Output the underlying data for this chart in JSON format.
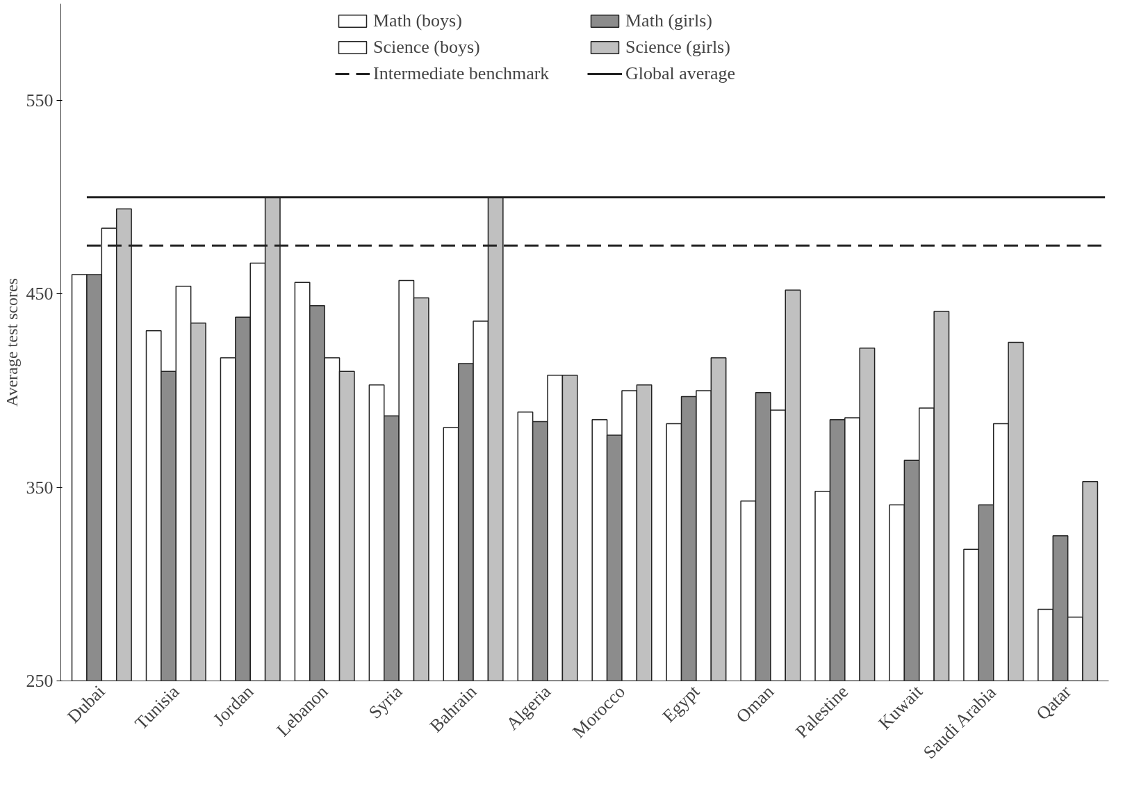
{
  "chart_data": {
    "type": "bar",
    "ylabel": "Average test scores",
    "categories": [
      "Dubai",
      "Tunisia",
      "Jordan",
      "Lebanon",
      "Syria",
      "Bahrain",
      "Algeria",
      "Morocco",
      "Egypt",
      "Oman",
      "Palestine",
      "Kuwait",
      "Saudi Arabia",
      "Qatar"
    ],
    "series": [
      {
        "name": "Math (boys)",
        "color": "#ffffff",
        "values": [
          460,
          431,
          417,
          456,
          403,
          381,
          389,
          385,
          383,
          343,
          348,
          341,
          318,
          287
        ]
      },
      {
        "name": "Math (girls)",
        "color": "#8c8c8c",
        "values": [
          460,
          410,
          438,
          444,
          387,
          414,
          384,
          377,
          397,
          399,
          385,
          364,
          341,
          325
        ]
      },
      {
        "name": "Science (boys)",
        "color": "#ffffff",
        "values": [
          484,
          454,
          466,
          417,
          457,
          436,
          408,
          400,
          400,
          390,
          386,
          391,
          383,
          283
        ]
      },
      {
        "name": "Science (girls)",
        "color": "#c0c0c0",
        "values": [
          494,
          435,
          500,
          410,
          448,
          500,
          408,
          403,
          417,
          452,
          422,
          441,
          425,
          353
        ]
      }
    ],
    "ylim": [
      250,
      600
    ],
    "yticks": [
      250,
      350,
      450,
      550
    ],
    "grid": false,
    "legend": "top",
    "ref_lines": [
      {
        "axis": "y",
        "value": 475,
        "label": "Intermediate benchmark",
        "line_style": "dashed",
        "color": "#222222"
      },
      {
        "axis": "y",
        "value": 500,
        "label": "Global average",
        "line_style": "solid",
        "color": "#222222"
      }
    ]
  }
}
